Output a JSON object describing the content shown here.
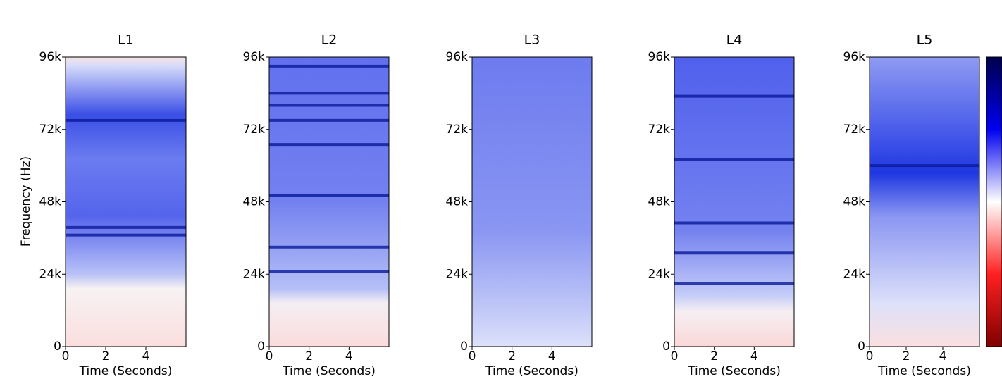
{
  "chart_data": [
    {
      "type": "spectrogram",
      "title": "L1",
      "xlabel": "Time (Seconds)",
      "ylabel": "Frequency (Hz)",
      "xlim": [
        0,
        6
      ],
      "xticks": [
        0,
        2,
        4
      ],
      "ylim": [
        0,
        96000
      ],
      "yticks": [
        0,
        {
          "value": 24000,
          "label": "24k"
        },
        {
          "value": 48000,
          "label": "48k"
        },
        {
          "value": 72000,
          "label": "72k"
        },
        {
          "value": 96000,
          "label": "96k"
        }
      ],
      "bands": [
        75000,
        39500,
        37000
      ]
    },
    {
      "type": "spectrogram",
      "title": "L2",
      "xlabel": "Time (Seconds)",
      "xlim": [
        0,
        6
      ],
      "xticks": [
        0,
        2,
        4
      ],
      "ylim": [
        0,
        96000
      ],
      "yticks": [
        0,
        {
          "value": 24000,
          "label": "24k"
        },
        {
          "value": 48000,
          "label": "48k"
        },
        {
          "value": 72000,
          "label": "72k"
        },
        {
          "value": 96000,
          "label": "96k"
        }
      ],
      "bands": [
        93000,
        84000,
        80000,
        75000,
        67000,
        50000,
        33000,
        25000
      ]
    },
    {
      "type": "spectrogram",
      "title": "L3",
      "xlabel": "Time (Seconds)",
      "xlim": [
        0,
        6
      ],
      "xticks": [
        0,
        2,
        4
      ],
      "ylim": [
        0,
        96000
      ],
      "yticks": [
        0,
        {
          "value": 24000,
          "label": "24k"
        },
        {
          "value": 48000,
          "label": "48k"
        },
        {
          "value": 72000,
          "label": "72k"
        },
        {
          "value": 96000,
          "label": "96k"
        }
      ],
      "bands": []
    },
    {
      "type": "spectrogram",
      "title": "L4",
      "xlabel": "Time (Seconds)",
      "xlim": [
        0,
        6
      ],
      "xticks": [
        0,
        2,
        4
      ],
      "ylim": [
        0,
        96000
      ],
      "yticks": [
        0,
        {
          "value": 24000,
          "label": "24k"
        },
        {
          "value": 48000,
          "label": "48k"
        },
        {
          "value": 72000,
          "label": "72k"
        },
        {
          "value": 96000,
          "label": "96k"
        }
      ],
      "bands": [
        83000,
        62000,
        41000,
        31000,
        21000
      ]
    },
    {
      "type": "spectrogram",
      "title": "L5",
      "xlabel": "Time (Seconds)",
      "xlim": [
        0,
        6
      ],
      "xticks": [
        0,
        2,
        4
      ],
      "ylim": [
        0,
        96000
      ],
      "yticks": [
        0,
        {
          "value": 24000,
          "label": "24k"
        },
        {
          "value": 48000,
          "label": "48k"
        },
        {
          "value": 72000,
          "label": "72k"
        },
        {
          "value": 96000,
          "label": "96k"
        }
      ],
      "bands": [
        60000
      ]
    }
  ]
}
